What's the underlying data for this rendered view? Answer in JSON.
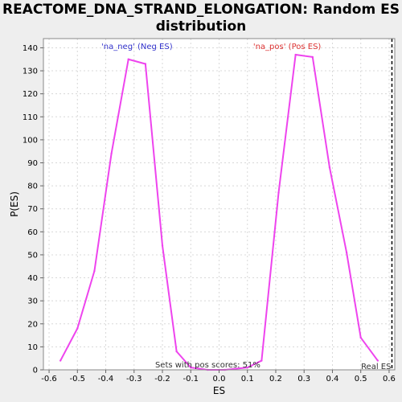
{
  "chart_data": {
    "type": "line",
    "title_line1": "REACTOME_DNA_STRAND_ELONGATION: Random ES",
    "title_line2": "distribution",
    "xlabel": "ES",
    "ylabel": "P(ES)",
    "xlim": [
      -0.62,
      0.62
    ],
    "ylim": [
      0,
      144
    ],
    "xticks": [
      -0.6,
      -0.5,
      -0.4,
      -0.3,
      -0.2,
      -0.1,
      0.0,
      0.1,
      0.2,
      0.3,
      0.4,
      0.5,
      0.6
    ],
    "xtick_labels": [
      "-0.6",
      "-0.5",
      "-0.4",
      "-0.3",
      "-0.2",
      "-0.1",
      "0.0",
      "0.1",
      "0.2",
      "0.3",
      "0.4",
      "0.5",
      "0.6"
    ],
    "yticks": [
      0,
      10,
      20,
      30,
      40,
      50,
      60,
      70,
      80,
      90,
      100,
      110,
      120,
      130,
      140
    ],
    "grid": true,
    "series": [
      {
        "color": "#ee44ee",
        "x": [
          -0.56,
          -0.5,
          -0.44,
          -0.38,
          -0.32,
          -0.26,
          -0.2,
          -0.15,
          -0.1,
          -0.04,
          0.02,
          0.1,
          0.15,
          0.21,
          0.27,
          0.33,
          0.39,
          0.45,
          0.5,
          0.56
        ],
        "y": [
          4,
          18,
          43,
          94,
          135,
          133,
          54,
          8,
          1,
          0,
          0,
          1,
          4,
          77,
          137,
          136,
          88,
          51,
          14,
          4
        ]
      }
    ],
    "annotations": {
      "neg_label": "'na_neg' (Neg ES)",
      "neg_color": "#3333cc",
      "pos_label": "'na_pos' (Pos ES)",
      "pos_color": "#dd3333",
      "pos_scores_text": "Sets with pos scores: 51%",
      "real_es_label": "Real ES",
      "real_es_value": 0.61
    }
  }
}
